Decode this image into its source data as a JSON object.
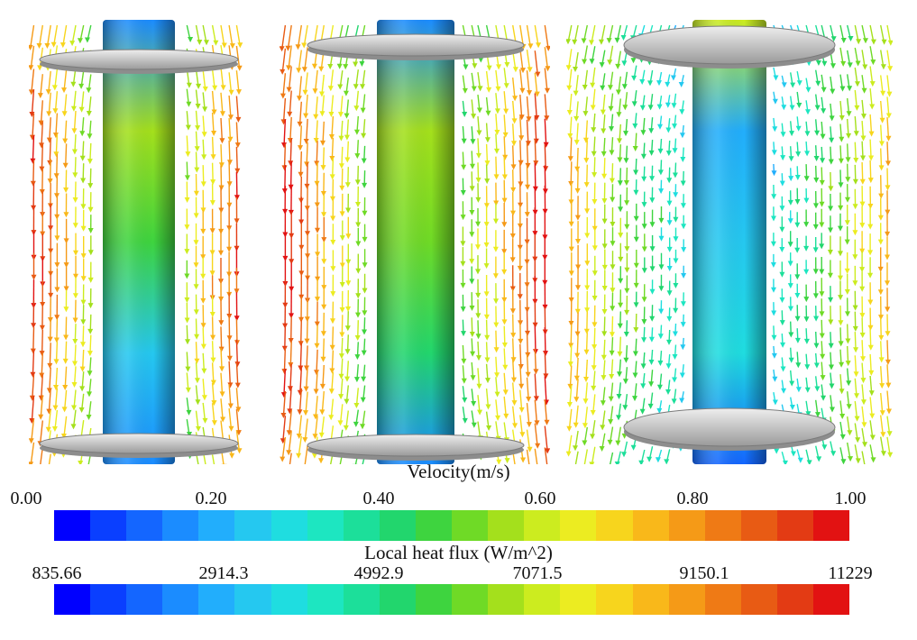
{
  "figure": {
    "panels": [
      {
        "id": "panel-1",
        "tube_color": "#2aa3d8"
      },
      {
        "id": "panel-2",
        "tube_color": "#2aa3d8"
      },
      {
        "id": "panel-3",
        "tube_color": "#2aa3d8"
      }
    ]
  },
  "velocity_colorbar": {
    "title": "Velocity(m/s)",
    "ticks": [
      "0.00",
      "0.20",
      "0.40",
      "0.60",
      "0.80",
      "1.00"
    ],
    "min": 0.0,
    "max": 1.0
  },
  "heatflux_colorbar": {
    "title": "Local heat flux (W/m^2)",
    "ticks": [
      "835.66",
      "2914.3",
      "4992.9",
      "7071.5",
      "9150.1",
      "11229"
    ],
    "min": 835.66,
    "max": 11229
  },
  "colormap": [
    "#0000ff",
    "#0a3fff",
    "#1466ff",
    "#1b8cff",
    "#22aefc",
    "#25c8f0",
    "#1fdde0",
    "#1de6c1",
    "#1cdf9a",
    "#22d66d",
    "#3ed43f",
    "#6fda26",
    "#a4e01c",
    "#ccec1f",
    "#ecec21",
    "#f7d51d",
    "#f9b81a",
    "#f59a17",
    "#ef7a15",
    "#e85b14",
    "#e33b14",
    "#e21212"
  ]
}
